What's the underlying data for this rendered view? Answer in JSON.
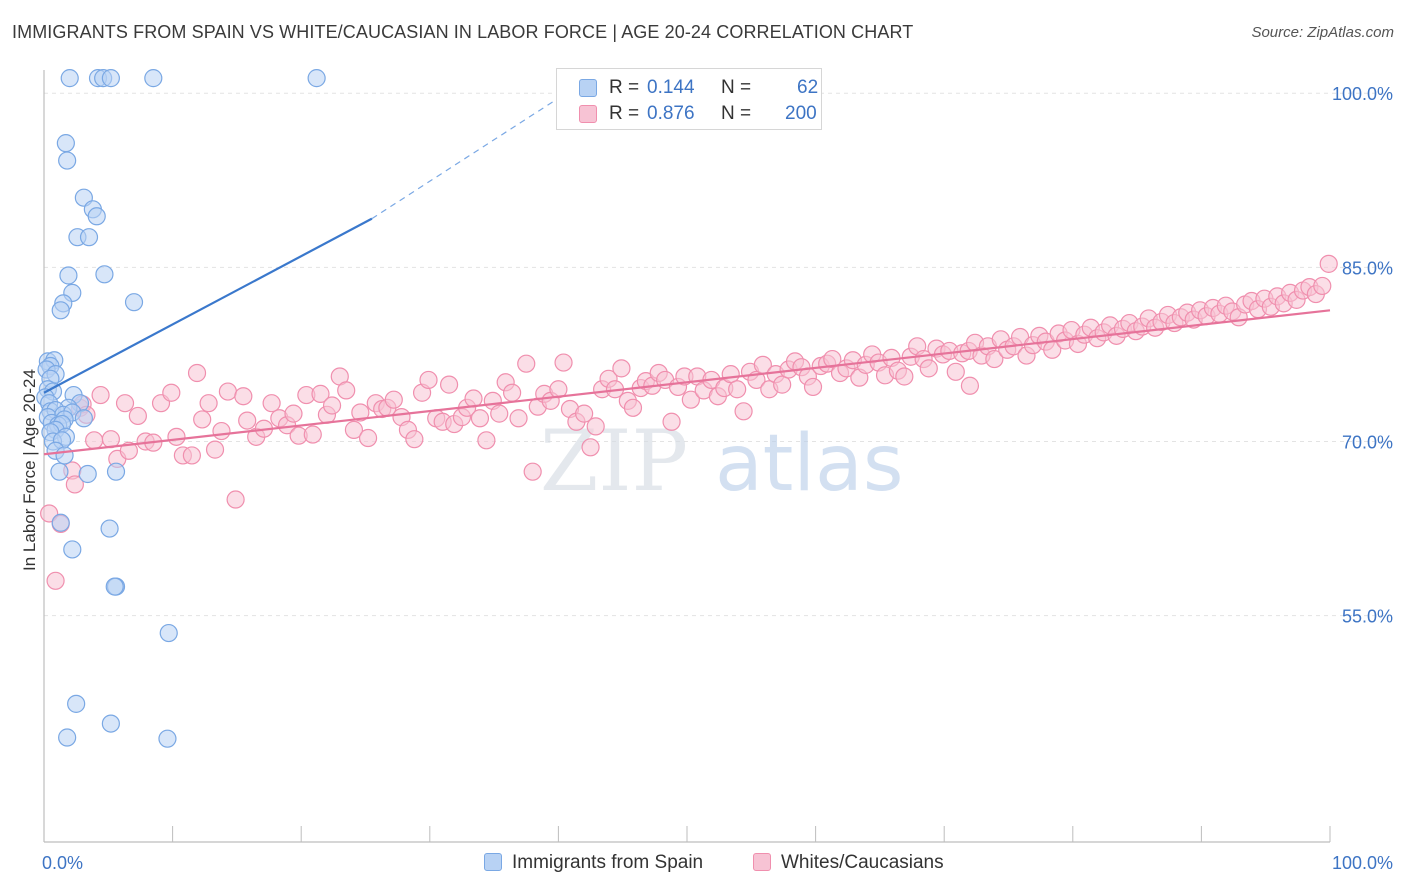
{
  "title": "IMMIGRANTS FROM SPAIN VS WHITE/CAUCASIAN IN LABOR FORCE | AGE 20-24 CORRELATION CHART",
  "source": "Source: ZipAtlas.com",
  "watermark": {
    "zip": "ZIP",
    "atlas": "atlas"
  },
  "colors": {
    "blue": "#7aa8e4",
    "blue_fill": "#b8d2f4",
    "blue_line": "#3a78cc",
    "pink": "#f08fae",
    "pink_fill": "#f7c3d4",
    "pink_line": "#e6739a",
    "tick_text": "#3d74c4",
    "grid": "#e3e3e3"
  },
  "legend": {
    "r_label": "R =",
    "n_label": "N =",
    "rows": [
      {
        "r": "0.144",
        "n": "62"
      },
      {
        "r": "0.876",
        "n": "200"
      }
    ],
    "series_names": [
      "Immigrants from Spain",
      "Whites/Caucasians"
    ]
  },
  "chart_data": {
    "type": "scatter",
    "title": "IMMIGRANTS FROM SPAIN VS WHITE/CAUCASIAN IN LABOR FORCE | AGE 20-24 CORRELATION CHART",
    "xlabel": "",
    "ylabel": "In Labor Force | Age 20-24",
    "xlim": [
      0,
      100
    ],
    "ylim": [
      35.5,
      102
    ],
    "x_tick_labels": [
      "0.0%",
      "100.0%"
    ],
    "y_ticks": [
      55,
      70,
      85,
      100
    ],
    "y_tick_labels": [
      "55.0%",
      "70.0%",
      "85.0%",
      "100.0%"
    ],
    "series": [
      {
        "name": "Immigrants from Spain",
        "R": 0.144,
        "N": 62,
        "trend": {
          "x0": 0,
          "y0": 74.2,
          "x1": 25.5,
          "y1": 89.2,
          "dash_to_x": 42,
          "dash_to_y": 101.0
        },
        "points": [
          [
            2.0,
            101.3
          ],
          [
            4.2,
            101.3
          ],
          [
            4.6,
            101.3
          ],
          [
            5.2,
            101.3
          ],
          [
            8.5,
            101.3
          ],
          [
            21.2,
            101.3
          ],
          [
            1.7,
            95.7
          ],
          [
            1.8,
            94.2
          ],
          [
            3.1,
            91.0
          ],
          [
            3.8,
            90.0
          ],
          [
            4.1,
            89.4
          ],
          [
            2.6,
            87.6
          ],
          [
            3.5,
            87.6
          ],
          [
            1.9,
            84.3
          ],
          [
            4.7,
            84.4
          ],
          [
            2.2,
            82.8
          ],
          [
            1.5,
            81.9
          ],
          [
            1.3,
            81.3
          ],
          [
            7.0,
            82.0
          ],
          [
            0.3,
            76.9
          ],
          [
            0.8,
            77.0
          ],
          [
            0.5,
            76.5
          ],
          [
            0.2,
            76.2
          ],
          [
            0.9,
            75.8
          ],
          [
            0.5,
            75.4
          ],
          [
            0.3,
            74.5
          ],
          [
            0.7,
            74.3
          ],
          [
            0.1,
            73.8
          ],
          [
            2.3,
            74.0
          ],
          [
            0.4,
            73.3
          ],
          [
            2.8,
            73.3
          ],
          [
            1.9,
            72.9
          ],
          [
            0.5,
            72.6
          ],
          [
            0.9,
            72.7
          ],
          [
            0.3,
            72.1
          ],
          [
            1.5,
            72.3
          ],
          [
            2.2,
            72.5
          ],
          [
            1.6,
            71.9
          ],
          [
            0.6,
            71.6
          ],
          [
            3.1,
            72.0
          ],
          [
            1.1,
            71.4
          ],
          [
            1.4,
            71.5
          ],
          [
            0.9,
            71.0
          ],
          [
            0.5,
            70.8
          ],
          [
            1.7,
            70.4
          ],
          [
            0.7,
            70.0
          ],
          [
            1.4,
            70.1
          ],
          [
            0.9,
            69.2
          ],
          [
            1.2,
            67.4
          ],
          [
            3.4,
            67.2
          ],
          [
            5.6,
            67.4
          ],
          [
            1.3,
            63.0
          ],
          [
            5.1,
            62.5
          ],
          [
            2.2,
            60.7
          ],
          [
            5.6,
            57.5
          ],
          [
            5.5,
            57.5
          ],
          [
            9.7,
            53.5
          ],
          [
            2.5,
            47.4
          ],
          [
            5.2,
            45.7
          ],
          [
            1.8,
            44.5
          ],
          [
            9.6,
            44.4
          ],
          [
            1.6,
            68.8
          ]
        ]
      },
      {
        "name": "Whites/Caucasians",
        "R": 0.876,
        "N": 200,
        "trend": {
          "x0": 0,
          "y0": 68.9,
          "x1": 100,
          "y1": 81.3
        },
        "points": [
          [
            0.4,
            63.8
          ],
          [
            0.9,
            58.0
          ],
          [
            1.3,
            62.9
          ],
          [
            2.2,
            67.5
          ],
          [
            2.4,
            66.3
          ],
          [
            2.8,
            72.9
          ],
          [
            3.0,
            73.2
          ],
          [
            3.3,
            72.3
          ],
          [
            3.9,
            70.1
          ],
          [
            4.4,
            74.0
          ],
          [
            5.2,
            70.2
          ],
          [
            5.7,
            68.5
          ],
          [
            6.3,
            73.3
          ],
          [
            6.6,
            69.2
          ],
          [
            7.3,
            72.2
          ],
          [
            7.9,
            70.0
          ],
          [
            8.5,
            69.9
          ],
          [
            9.1,
            73.3
          ],
          [
            9.9,
            74.2
          ],
          [
            10.3,
            70.4
          ],
          [
            10.8,
            68.8
          ],
          [
            11.5,
            68.8
          ],
          [
            11.9,
            75.9
          ],
          [
            12.3,
            71.9
          ],
          [
            12.8,
            73.3
          ],
          [
            13.3,
            69.3
          ],
          [
            13.8,
            70.9
          ],
          [
            14.3,
            74.3
          ],
          [
            14.9,
            65.0
          ],
          [
            15.5,
            73.9
          ],
          [
            15.8,
            71.8
          ],
          [
            16.5,
            70.4
          ],
          [
            17.1,
            71.1
          ],
          [
            17.7,
            73.3
          ],
          [
            18.3,
            72.0
          ],
          [
            18.9,
            71.4
          ],
          [
            19.4,
            72.4
          ],
          [
            19.8,
            70.5
          ],
          [
            20.4,
            74.0
          ],
          [
            20.9,
            70.6
          ],
          [
            21.5,
            74.1
          ],
          [
            22.0,
            72.3
          ],
          [
            22.4,
            73.1
          ],
          [
            23.0,
            75.6
          ],
          [
            23.5,
            74.4
          ],
          [
            24.1,
            71.0
          ],
          [
            24.6,
            72.5
          ],
          [
            25.2,
            70.3
          ],
          [
            25.8,
            73.3
          ],
          [
            26.3,
            72.8
          ],
          [
            26.7,
            72.9
          ],
          [
            27.2,
            73.6
          ],
          [
            27.8,
            72.1
          ],
          [
            28.3,
            71.0
          ],
          [
            28.8,
            70.2
          ],
          [
            29.4,
            74.2
          ],
          [
            29.9,
            75.3
          ],
          [
            30.5,
            72.0
          ],
          [
            31.0,
            71.7
          ],
          [
            31.5,
            74.9
          ],
          [
            31.9,
            71.5
          ],
          [
            32.5,
            72.1
          ],
          [
            32.9,
            72.9
          ],
          [
            33.4,
            73.7
          ],
          [
            33.9,
            72.0
          ],
          [
            34.4,
            70.1
          ],
          [
            34.9,
            73.5
          ],
          [
            35.4,
            72.4
          ],
          [
            35.9,
            75.1
          ],
          [
            36.4,
            74.2
          ],
          [
            36.9,
            72.0
          ],
          [
            37.5,
            76.7
          ],
          [
            38.0,
            67.4
          ],
          [
            38.4,
            73.0
          ],
          [
            38.9,
            74.1
          ],
          [
            39.4,
            73.5
          ],
          [
            40.0,
            74.5
          ],
          [
            40.4,
            76.8
          ],
          [
            40.9,
            72.8
          ],
          [
            41.4,
            71.7
          ],
          [
            42.0,
            72.4
          ],
          [
            42.5,
            69.5
          ],
          [
            42.9,
            71.3
          ],
          [
            43.4,
            74.5
          ],
          [
            43.9,
            75.4
          ],
          [
            44.4,
            74.5
          ],
          [
            44.9,
            76.3
          ],
          [
            45.4,
            73.5
          ],
          [
            45.8,
            72.9
          ],
          [
            46.4,
            74.6
          ],
          [
            46.8,
            75.2
          ],
          [
            47.3,
            74.8
          ],
          [
            47.8,
            75.9
          ],
          [
            48.3,
            75.3
          ],
          [
            48.8,
            71.7
          ],
          [
            49.3,
            74.7
          ],
          [
            49.8,
            75.6
          ],
          [
            50.3,
            73.6
          ],
          [
            50.8,
            75.6
          ],
          [
            51.3,
            74.4
          ],
          [
            51.9,
            75.3
          ],
          [
            52.4,
            73.9
          ],
          [
            52.9,
            74.6
          ],
          [
            53.4,
            75.8
          ],
          [
            53.9,
            74.5
          ],
          [
            54.4,
            72.6
          ],
          [
            54.9,
            76.0
          ],
          [
            55.4,
            75.3
          ],
          [
            55.9,
            76.6
          ],
          [
            56.4,
            74.5
          ],
          [
            56.9,
            75.8
          ],
          [
            57.4,
            74.9
          ],
          [
            57.9,
            76.2
          ],
          [
            58.4,
            76.9
          ],
          [
            58.9,
            76.4
          ],
          [
            59.4,
            75.6
          ],
          [
            59.8,
            74.7
          ],
          [
            60.4,
            76.5
          ],
          [
            60.9,
            76.7
          ],
          [
            61.3,
            77.1
          ],
          [
            61.9,
            75.9
          ],
          [
            62.4,
            76.3
          ],
          [
            62.9,
            77.0
          ],
          [
            63.4,
            75.5
          ],
          [
            63.9,
            76.6
          ],
          [
            64.4,
            77.5
          ],
          [
            64.9,
            76.8
          ],
          [
            65.4,
            75.7
          ],
          [
            65.9,
            77.2
          ],
          [
            66.4,
            76.1
          ],
          [
            66.9,
            75.6
          ],
          [
            67.4,
            77.3
          ],
          [
            67.9,
            78.2
          ],
          [
            68.4,
            77.1
          ],
          [
            68.8,
            76.3
          ],
          [
            69.4,
            78.0
          ],
          [
            69.9,
            77.5
          ],
          [
            70.4,
            77.8
          ],
          [
            70.9,
            76.0
          ],
          [
            71.4,
            77.6
          ],
          [
            71.9,
            77.8
          ],
          [
            72.4,
            78.5
          ],
          [
            72.9,
            77.4
          ],
          [
            73.4,
            78.2
          ],
          [
            73.9,
            77.1
          ],
          [
            74.4,
            78.8
          ],
          [
            74.9,
            77.9
          ],
          [
            75.4,
            78.2
          ],
          [
            75.9,
            79.0
          ],
          [
            76.4,
            77.4
          ],
          [
            76.9,
            78.3
          ],
          [
            77.4,
            79.1
          ],
          [
            77.9,
            78.6
          ],
          [
            78.4,
            77.9
          ],
          [
            78.9,
            79.3
          ],
          [
            79.4,
            78.7
          ],
          [
            79.9,
            79.6
          ],
          [
            80.4,
            78.4
          ],
          [
            80.9,
            79.2
          ],
          [
            81.4,
            79.8
          ],
          [
            81.9,
            78.9
          ],
          [
            82.4,
            79.4
          ],
          [
            82.9,
            80.0
          ],
          [
            83.4,
            79.1
          ],
          [
            83.9,
            79.7
          ],
          [
            84.4,
            80.2
          ],
          [
            84.9,
            79.5
          ],
          [
            85.4,
            79.9
          ],
          [
            85.9,
            80.6
          ],
          [
            86.4,
            79.8
          ],
          [
            86.9,
            80.3
          ],
          [
            87.4,
            80.9
          ],
          [
            87.9,
            80.2
          ],
          [
            88.4,
            80.7
          ],
          [
            88.9,
            81.1
          ],
          [
            89.4,
            80.5
          ],
          [
            89.9,
            81.3
          ],
          [
            90.4,
            80.8
          ],
          [
            90.9,
            81.5
          ],
          [
            91.4,
            81.0
          ],
          [
            91.9,
            81.7
          ],
          [
            92.4,
            81.2
          ],
          [
            92.9,
            80.7
          ],
          [
            93.4,
            81.8
          ],
          [
            93.9,
            82.1
          ],
          [
            94.4,
            81.4
          ],
          [
            94.9,
            82.3
          ],
          [
            95.4,
            81.6
          ],
          [
            95.9,
            82.5
          ],
          [
            96.4,
            81.9
          ],
          [
            96.9,
            82.8
          ],
          [
            97.4,
            82.2
          ],
          [
            97.9,
            83.0
          ],
          [
            98.4,
            83.3
          ],
          [
            98.9,
            82.7
          ],
          [
            99.4,
            83.4
          ],
          [
            99.9,
            85.3
          ],
          [
            72.0,
            74.8
          ]
        ]
      }
    ]
  }
}
